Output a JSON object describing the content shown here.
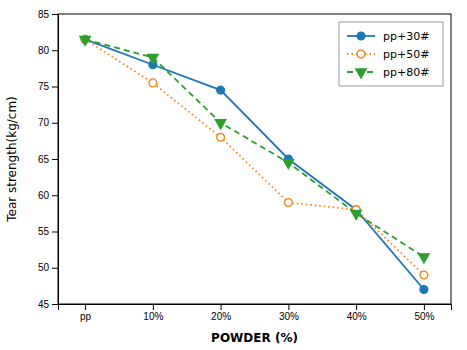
{
  "chart_data": {
    "type": "line",
    "categories": [
      "pp",
      "10%",
      "20%",
      "30%",
      "40%",
      "50%"
    ],
    "series": [
      {
        "name": "pp+30#",
        "values": [
          81.5,
          78.0,
          74.5,
          65.0,
          58.0,
          47.0
        ],
        "line_style": "solid",
        "marker": "circle"
      },
      {
        "name": "pp+50#",
        "values": [
          81.5,
          75.5,
          68.0,
          59.0,
          58.0,
          49.0
        ],
        "line_style": "dotted",
        "marker": "circle-open"
      },
      {
        "name": "pp+80#",
        "values": [
          81.5,
          79.0,
          70.0,
          64.5,
          57.5,
          51.5
        ],
        "line_style": "dashed",
        "marker": "triangle-down"
      }
    ],
    "x_label": "POWDER (%)",
    "y_label": "Tear strength(kg/cm)",
    "ylim": [
      45,
      85
    ],
    "yticks": [
      45,
      50,
      55,
      60,
      65,
      70,
      75,
      80,
      85
    ],
    "grid": false,
    "legend": "upper right"
  }
}
